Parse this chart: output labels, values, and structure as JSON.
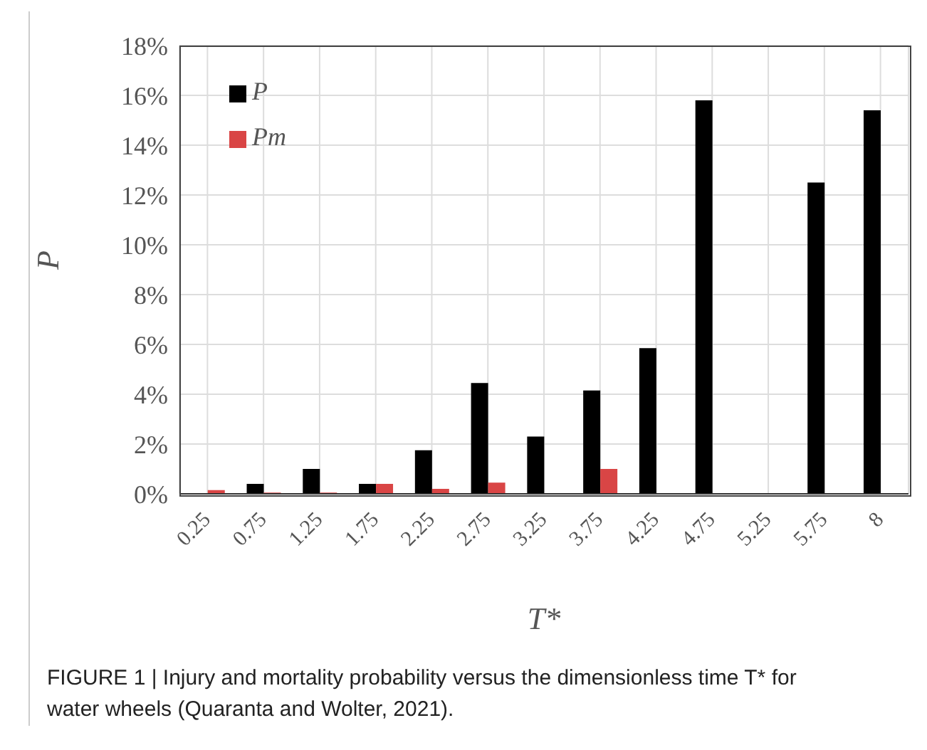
{
  "chart_data": {
    "type": "bar",
    "categories": [
      "0.25",
      "0.75",
      "1.25",
      "1.75",
      "2.25",
      "2.75",
      "3.25",
      "3.75",
      "4.25",
      "4.75",
      "5.25",
      "5.75",
      "8"
    ],
    "series": [
      {
        "name": "P",
        "color": "#000000",
        "values": [
          0,
          0.4,
          1.0,
          0.4,
          1.75,
          4.45,
          2.3,
          4.15,
          5.85,
          15.8,
          0,
          12.5,
          15.4
        ]
      },
      {
        "name": "Pm",
        "color": "#d94545",
        "values": [
          0.15,
          0.05,
          0.05,
          0.4,
          0.2,
          0.45,
          0,
          1.0,
          0,
          0,
          0,
          0,
          0
        ]
      }
    ],
    "xlabel": "T*",
    "ylabel": "P",
    "ylim": [
      0,
      18
    ],
    "yticks": [
      {
        "value": 0,
        "label": "0%"
      },
      {
        "value": 2,
        "label": "2%"
      },
      {
        "value": 4,
        "label": "4%"
      },
      {
        "value": 6,
        "label": "6%"
      },
      {
        "value": 8,
        "label": "8%"
      },
      {
        "value": 10,
        "label": "10%"
      },
      {
        "value": 12,
        "label": "12%"
      },
      {
        "value": 14,
        "label": "14%"
      },
      {
        "value": 16,
        "label": "16%"
      },
      {
        "value": 18,
        "label": "18%"
      }
    ],
    "grid": true,
    "legend": "top left",
    "annotations": [
      "FIGURE 1 | Injury and mortality probability versus the dimensionless time T* for water wheels (Quaranta and Wolter, 2021)."
    ]
  }
}
